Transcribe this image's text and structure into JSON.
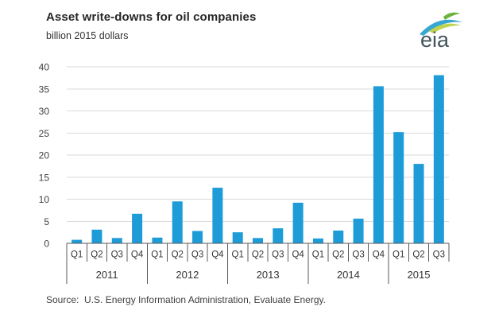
{
  "header": {
    "title": "Asset write-downs for oil companies",
    "subtitle": "billion 2015 dollars",
    "logo_text": "eia"
  },
  "chart_data": {
    "type": "bar",
    "title": "Asset write-downs for oil companies",
    "ylabel": "billion 2015 dollars",
    "categories": [
      "Q1",
      "Q2",
      "Q3",
      "Q4",
      "Q1",
      "Q2",
      "Q3",
      "Q4",
      "Q1",
      "Q2",
      "Q3",
      "Q4",
      "Q1",
      "Q2",
      "Q3",
      "Q4",
      "Q1",
      "Q2",
      "Q3"
    ],
    "values": [
      0.8,
      3.1,
      1.2,
      6.7,
      1.3,
      9.5,
      2.8,
      12.6,
      2.5,
      1.2,
      3.4,
      9.2,
      1.1,
      2.9,
      5.6,
      35.6,
      25.2,
      18.0,
      38.1
    ],
    "year_groups": [
      {
        "label": "2011",
        "count": 4
      },
      {
        "label": "2012",
        "count": 4
      },
      {
        "label": "2013",
        "count": 4
      },
      {
        "label": "2014",
        "count": 4
      },
      {
        "label": "2015",
        "count": 3
      }
    ],
    "yticks": [
      0,
      5,
      10,
      15,
      20,
      25,
      30,
      35,
      40
    ],
    "ylim": [
      0,
      40
    ],
    "grid": true,
    "legend_position": "none",
    "bar_color": "#1E9CD8",
    "grid_color": "#DADADA",
    "axis_color": "#58595B",
    "tick_label_color": "#3F3F3F"
  },
  "logo_colors": {
    "leaf_green": "#6CB33F",
    "swoosh_blue": "#35A7D0",
    "swoosh_yellow_green": "#BFD34F",
    "text_color": "#44535D"
  },
  "footer": {
    "source": "Source:  U.S. Energy Information Administration, Evaluate Energy."
  }
}
